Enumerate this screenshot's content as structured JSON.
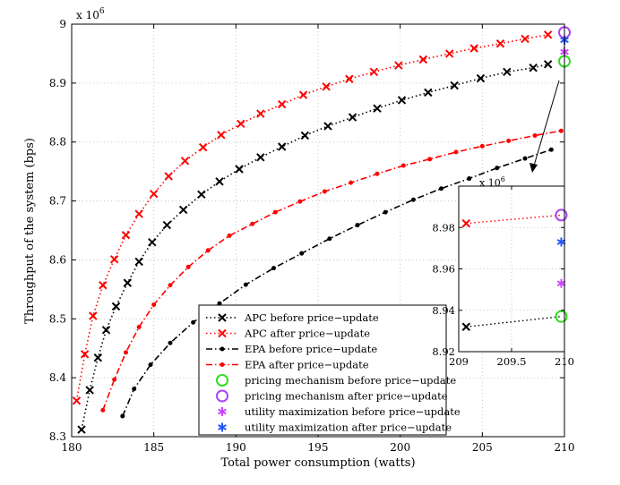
{
  "chart_data": {
    "type": "line",
    "title": "",
    "xlabel": "Total power consumption (watts)",
    "ylabel": "Throughput of the system (bps)",
    "y_exponent_label": "x 10",
    "y_exponent": "6",
    "xlim": [
      180,
      210
    ],
    "ylim": [
      8.3,
      9.0
    ],
    "xticks": [
      180,
      185,
      190,
      195,
      200,
      205,
      210
    ],
    "yticks": [
      8.3,
      8.4,
      8.5,
      8.6,
      8.7,
      8.8,
      8.9,
      9.0
    ],
    "xtick_labels": [
      "180",
      "185",
      "190",
      "195",
      "200",
      "205",
      "210"
    ],
    "ytick_labels": [
      "8.3",
      "8.4",
      "8.5",
      "8.6",
      "8.7",
      "8.8",
      "8.9",
      "9"
    ],
    "grid": true,
    "legend_position": "bottom-right",
    "series": [
      {
        "name": "APC before price−update",
        "color": "#000000",
        "line": "dotted",
        "marker": "x",
        "x": [
          180.6,
          181.1,
          181.6,
          182.1,
          182.7,
          183.4,
          184.1,
          184.9,
          185.8,
          186.8,
          187.9,
          189.0,
          190.2,
          191.5,
          192.8,
          194.2,
          195.6,
          197.1,
          198.6,
          200.1,
          201.7,
          203.3,
          204.9,
          206.5,
          208.1,
          209.0
        ],
        "values": [
          8.312,
          8.379,
          8.434,
          8.481,
          8.521,
          8.561,
          8.597,
          8.63,
          8.659,
          8.685,
          8.711,
          8.733,
          8.754,
          8.774,
          8.792,
          8.811,
          8.827,
          8.842,
          8.857,
          8.871,
          8.884,
          8.896,
          8.908,
          8.919,
          8.926,
          8.932
        ]
      },
      {
        "name": "APC after price−update",
        "color": "#ff0000",
        "line": "dotted",
        "marker": "x",
        "x": [
          180.3,
          180.8,
          181.3,
          181.9,
          182.6,
          183.3,
          184.1,
          185.0,
          185.9,
          186.9,
          188.0,
          189.1,
          190.3,
          191.5,
          192.8,
          194.1,
          195.5,
          196.9,
          198.4,
          199.9,
          201.4,
          203.0,
          204.5,
          206.1,
          207.6,
          209.0
        ],
        "values": [
          8.361,
          8.44,
          8.505,
          8.557,
          8.601,
          8.642,
          8.678,
          8.712,
          8.742,
          8.768,
          8.791,
          8.812,
          8.831,
          8.848,
          8.864,
          8.88,
          8.894,
          8.907,
          8.919,
          8.93,
          8.94,
          8.95,
          8.959,
          8.967,
          8.975,
          8.982
        ]
      },
      {
        "name": "EPA before price−update",
        "color": "#000000",
        "line": "dashdot",
        "marker": "dot",
        "x": [
          183.1,
          183.8,
          184.8,
          186.0,
          187.4,
          189.0,
          190.6,
          192.3,
          194.0,
          195.7,
          197.4,
          199.1,
          200.8,
          202.5,
          204.2,
          205.9,
          207.6,
          209.2
        ],
        "values": [
          8.335,
          8.381,
          8.422,
          8.459,
          8.494,
          8.526,
          8.558,
          8.586,
          8.611,
          8.636,
          8.659,
          8.681,
          8.702,
          8.721,
          8.738,
          8.756,
          8.772,
          8.787
        ]
      },
      {
        "name": "EPA after price−update",
        "color": "#ff0000",
        "line": "dashdot",
        "marker": "dot",
        "x": [
          181.9,
          182.6,
          183.3,
          184.1,
          185.0,
          186.0,
          187.1,
          188.3,
          189.6,
          191.0,
          192.4,
          193.9,
          195.4,
          197.0,
          198.6,
          200.2,
          201.8,
          203.4,
          205.0,
          206.6,
          208.2,
          209.8
        ],
        "values": [
          8.345,
          8.397,
          8.443,
          8.486,
          8.524,
          8.557,
          8.588,
          8.616,
          8.641,
          8.661,
          8.681,
          8.699,
          8.716,
          8.731,
          8.746,
          8.76,
          8.771,
          8.783,
          8.793,
          8.802,
          8.811,
          8.819
        ]
      },
      {
        "name": "pricing mechanism before price−update",
        "color": "#33dd22",
        "line": "none",
        "marker": "circle",
        "x": [
          210
        ],
        "values": [
          8.937
        ]
      },
      {
        "name": "pricing mechanism after price−update",
        "color": "#aa44ee",
        "line": "none",
        "marker": "circle",
        "x": [
          210
        ],
        "values": [
          8.986
        ]
      },
      {
        "name": "utility maximization before price−update",
        "color": "#cc44ff",
        "line": "none",
        "marker": "asterisk",
        "x": [
          210
        ],
        "values": [
          8.953
        ]
      },
      {
        "name": "utility maximization after price−update",
        "color": "#2255ff",
        "line": "none",
        "marker": "asterisk",
        "x": [
          210
        ],
        "values": [
          8.973
        ]
      }
    ],
    "inset": {
      "xlim": [
        209,
        210
      ],
      "ylim": [
        8.92,
        9.0
      ],
      "xticks": [
        209,
        209.5,
        210
      ],
      "yticks": [
        8.92,
        8.94,
        8.96,
        8.98
      ],
      "xtick_labels": [
        "209",
        "209.5",
        "210"
      ],
      "ytick_labels": [
        "8.92",
        "8.94",
        "8.96",
        "8.98"
      ],
      "y_exponent_label": "x 10",
      "y_exponent": "6",
      "lines": [
        {
          "color": "#000000",
          "x": [
            209.07,
            209.97
          ],
          "values": [
            8.932,
            8.937
          ]
        },
        {
          "color": "#ff0000",
          "x": [
            209.07,
            209.97
          ],
          "values": [
            8.982,
            8.986
          ]
        }
      ],
      "markers": [
        {
          "marker": "x",
          "color": "#000000",
          "x": 209.07,
          "value": 8.932
        },
        {
          "marker": "x",
          "color": "#ff0000",
          "x": 209.07,
          "value": 8.982
        },
        {
          "marker": "circle",
          "color": "#33dd22",
          "x": 209.97,
          "value": 8.937
        },
        {
          "marker": "circle",
          "color": "#aa44ee",
          "x": 209.97,
          "value": 8.986
        },
        {
          "marker": "asterisk",
          "color": "#cc44ff",
          "x": 209.97,
          "value": 8.953
        },
        {
          "marker": "asterisk",
          "color": "#2255ff",
          "x": 209.97,
          "value": 8.973
        }
      ]
    }
  }
}
